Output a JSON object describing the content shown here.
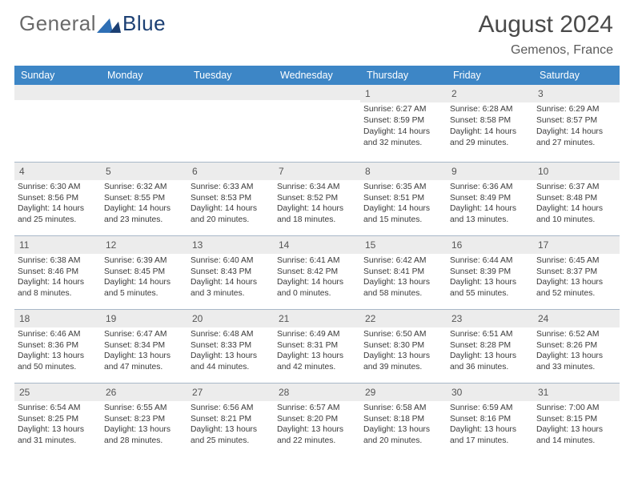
{
  "logo": {
    "text_left": "General",
    "text_right": "Blue"
  },
  "title": "August 2024",
  "subtitle": "Gemenos, France",
  "colors": {
    "header_bg": "#3d86c6",
    "header_fg": "#ffffff",
    "daynum_bg": "#ececec",
    "border": "#a8b8c8",
    "logo_tri1": "#2f6fb5",
    "logo_tri2": "#1b3f73",
    "text_gray": "#6a6a6a"
  },
  "day_headers": [
    "Sunday",
    "Monday",
    "Tuesday",
    "Wednesday",
    "Thursday",
    "Friday",
    "Saturday"
  ],
  "weeks": [
    [
      {
        "n": "",
        "lines": []
      },
      {
        "n": "",
        "lines": []
      },
      {
        "n": "",
        "lines": []
      },
      {
        "n": "",
        "lines": []
      },
      {
        "n": "1",
        "lines": [
          "Sunrise: 6:27 AM",
          "Sunset: 8:59 PM",
          "Daylight: 14 hours and 32 minutes."
        ]
      },
      {
        "n": "2",
        "lines": [
          "Sunrise: 6:28 AM",
          "Sunset: 8:58 PM",
          "Daylight: 14 hours and 29 minutes."
        ]
      },
      {
        "n": "3",
        "lines": [
          "Sunrise: 6:29 AM",
          "Sunset: 8:57 PM",
          "Daylight: 14 hours and 27 minutes."
        ]
      }
    ],
    [
      {
        "n": "4",
        "lines": [
          "Sunrise: 6:30 AM",
          "Sunset: 8:56 PM",
          "Daylight: 14 hours and 25 minutes."
        ]
      },
      {
        "n": "5",
        "lines": [
          "Sunrise: 6:32 AM",
          "Sunset: 8:55 PM",
          "Daylight: 14 hours and 23 minutes."
        ]
      },
      {
        "n": "6",
        "lines": [
          "Sunrise: 6:33 AM",
          "Sunset: 8:53 PM",
          "Daylight: 14 hours and 20 minutes."
        ]
      },
      {
        "n": "7",
        "lines": [
          "Sunrise: 6:34 AM",
          "Sunset: 8:52 PM",
          "Daylight: 14 hours and 18 minutes."
        ]
      },
      {
        "n": "8",
        "lines": [
          "Sunrise: 6:35 AM",
          "Sunset: 8:51 PM",
          "Daylight: 14 hours and 15 minutes."
        ]
      },
      {
        "n": "9",
        "lines": [
          "Sunrise: 6:36 AM",
          "Sunset: 8:49 PM",
          "Daylight: 14 hours and 13 minutes."
        ]
      },
      {
        "n": "10",
        "lines": [
          "Sunrise: 6:37 AM",
          "Sunset: 8:48 PM",
          "Daylight: 14 hours and 10 minutes."
        ]
      }
    ],
    [
      {
        "n": "11",
        "lines": [
          "Sunrise: 6:38 AM",
          "Sunset: 8:46 PM",
          "Daylight: 14 hours and 8 minutes."
        ]
      },
      {
        "n": "12",
        "lines": [
          "Sunrise: 6:39 AM",
          "Sunset: 8:45 PM",
          "Daylight: 14 hours and 5 minutes."
        ]
      },
      {
        "n": "13",
        "lines": [
          "Sunrise: 6:40 AM",
          "Sunset: 8:43 PM",
          "Daylight: 14 hours and 3 minutes."
        ]
      },
      {
        "n": "14",
        "lines": [
          "Sunrise: 6:41 AM",
          "Sunset: 8:42 PM",
          "Daylight: 14 hours and 0 minutes."
        ]
      },
      {
        "n": "15",
        "lines": [
          "Sunrise: 6:42 AM",
          "Sunset: 8:41 PM",
          "Daylight: 13 hours and 58 minutes."
        ]
      },
      {
        "n": "16",
        "lines": [
          "Sunrise: 6:44 AM",
          "Sunset: 8:39 PM",
          "Daylight: 13 hours and 55 minutes."
        ]
      },
      {
        "n": "17",
        "lines": [
          "Sunrise: 6:45 AM",
          "Sunset: 8:37 PM",
          "Daylight: 13 hours and 52 minutes."
        ]
      }
    ],
    [
      {
        "n": "18",
        "lines": [
          "Sunrise: 6:46 AM",
          "Sunset: 8:36 PM",
          "Daylight: 13 hours and 50 minutes."
        ]
      },
      {
        "n": "19",
        "lines": [
          "Sunrise: 6:47 AM",
          "Sunset: 8:34 PM",
          "Daylight: 13 hours and 47 minutes."
        ]
      },
      {
        "n": "20",
        "lines": [
          "Sunrise: 6:48 AM",
          "Sunset: 8:33 PM",
          "Daylight: 13 hours and 44 minutes."
        ]
      },
      {
        "n": "21",
        "lines": [
          "Sunrise: 6:49 AM",
          "Sunset: 8:31 PM",
          "Daylight: 13 hours and 42 minutes."
        ]
      },
      {
        "n": "22",
        "lines": [
          "Sunrise: 6:50 AM",
          "Sunset: 8:30 PM",
          "Daylight: 13 hours and 39 minutes."
        ]
      },
      {
        "n": "23",
        "lines": [
          "Sunrise: 6:51 AM",
          "Sunset: 8:28 PM",
          "Daylight: 13 hours and 36 minutes."
        ]
      },
      {
        "n": "24",
        "lines": [
          "Sunrise: 6:52 AM",
          "Sunset: 8:26 PM",
          "Daylight: 13 hours and 33 minutes."
        ]
      }
    ],
    [
      {
        "n": "25",
        "lines": [
          "Sunrise: 6:54 AM",
          "Sunset: 8:25 PM",
          "Daylight: 13 hours and 31 minutes."
        ]
      },
      {
        "n": "26",
        "lines": [
          "Sunrise: 6:55 AM",
          "Sunset: 8:23 PM",
          "Daylight: 13 hours and 28 minutes."
        ]
      },
      {
        "n": "27",
        "lines": [
          "Sunrise: 6:56 AM",
          "Sunset: 8:21 PM",
          "Daylight: 13 hours and 25 minutes."
        ]
      },
      {
        "n": "28",
        "lines": [
          "Sunrise: 6:57 AM",
          "Sunset: 8:20 PM",
          "Daylight: 13 hours and 22 minutes."
        ]
      },
      {
        "n": "29",
        "lines": [
          "Sunrise: 6:58 AM",
          "Sunset: 8:18 PM",
          "Daylight: 13 hours and 20 minutes."
        ]
      },
      {
        "n": "30",
        "lines": [
          "Sunrise: 6:59 AM",
          "Sunset: 8:16 PM",
          "Daylight: 13 hours and 17 minutes."
        ]
      },
      {
        "n": "31",
        "lines": [
          "Sunrise: 7:00 AM",
          "Sunset: 8:15 PM",
          "Daylight: 13 hours and 14 minutes."
        ]
      }
    ]
  ]
}
